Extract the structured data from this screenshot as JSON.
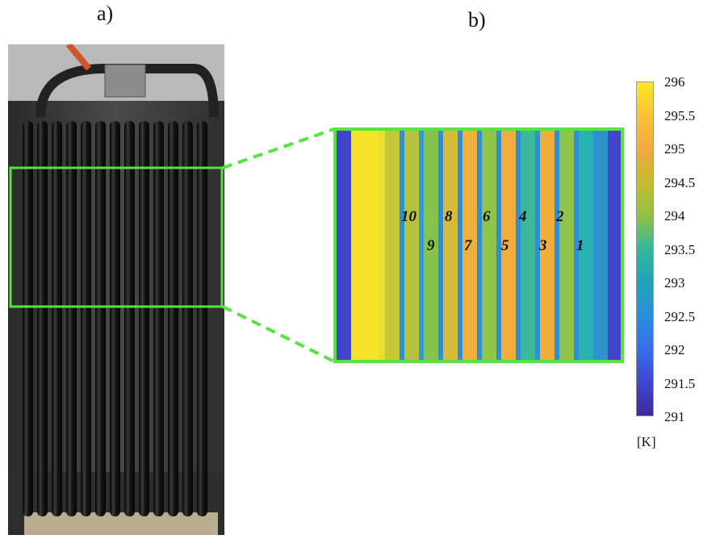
{
  "panels": {
    "a_label": "a)",
    "b_label": "b)"
  },
  "photo": {
    "description_icon": "heat-exchanger-photo",
    "tube_count": 13,
    "highlight_color": "#54e53f"
  },
  "thermal": {
    "tube_labels": [
      "10",
      "8",
      "6",
      "4",
      "2",
      "9",
      "7",
      "5",
      "3",
      "1"
    ],
    "box_color": "#54e53f"
  },
  "colorbar": {
    "ticks": [
      "296",
      "295.5",
      "295",
      "294.5",
      "294",
      "293.5",
      "293",
      "292.5",
      "292",
      "291.5",
      "291"
    ],
    "unit": "[K]",
    "max": 296,
    "min": 291
  }
}
